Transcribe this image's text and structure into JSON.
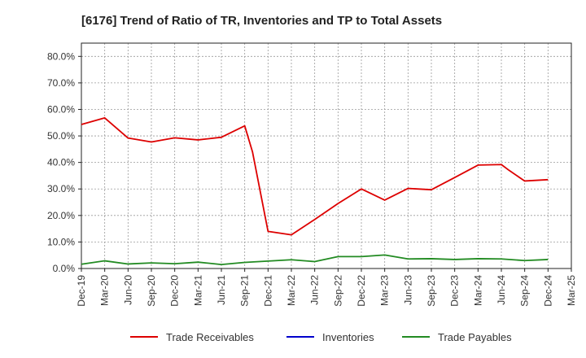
{
  "chart_data": {
    "type": "line",
    "title": "[6176]  Trend of Ratio of TR, Inventories and TP to Total Assets",
    "xlabel": "",
    "ylabel": "",
    "ylim": [
      0,
      85
    ],
    "y_ticks": [
      "0.0%",
      "10.0%",
      "20.0%",
      "30.0%",
      "40.0%",
      "50.0%",
      "60.0%",
      "70.0%",
      "80.0%"
    ],
    "x_ticks": [
      "Dec-19",
      "Mar-20",
      "Jun-20",
      "Sep-20",
      "Dec-20",
      "Mar-21",
      "Jun-21",
      "Sep-21",
      "Dec-21",
      "Mar-22",
      "Jun-22",
      "Sep-22",
      "Dec-22",
      "Mar-23",
      "Jun-23",
      "Sep-23",
      "Dec-23",
      "Mar-24",
      "Jun-24",
      "Sep-24",
      "Dec-24",
      "Mar-25"
    ],
    "grid": true,
    "legend_position": "bottom",
    "colors": {
      "trade_receivables": "#dd0000",
      "inventories": "#0000cc",
      "trade_payables": "#228b22"
    },
    "series": [
      {
        "name": "Trade Receivables",
        "color": "#dd0000",
        "points": [
          [
            "Dec-19",
            54.3
          ],
          [
            "Mar-20",
            56.8
          ],
          [
            "Jun-20",
            49.2
          ],
          [
            "Sep-20",
            47.7
          ],
          [
            "Dec-20",
            49.3
          ],
          [
            "Mar-21",
            48.5
          ],
          [
            "Jun-21",
            49.5
          ],
          [
            "Sep-21",
            53.8
          ],
          [
            "Oct-21",
            44.0
          ],
          [
            "Dec-21",
            14.0
          ],
          [
            "Mar-22",
            12.7
          ],
          [
            "Jun-22",
            18.5
          ],
          [
            "Sep-22",
            24.5
          ],
          [
            "Dec-22",
            30.0
          ],
          [
            "Mar-23",
            25.8
          ],
          [
            "Jun-23",
            30.2
          ],
          [
            "Sep-23",
            29.7
          ],
          [
            "Dec-23",
            34.3
          ],
          [
            "Mar-24",
            39.0
          ],
          [
            "Jun-24",
            39.2
          ],
          [
            "Jul-24",
            37.0
          ],
          [
            "Sep-24",
            33.0
          ],
          [
            "Dec-24",
            33.5
          ]
        ]
      },
      {
        "name": "Inventories",
        "color": "#0000cc",
        "points": []
      },
      {
        "name": "Trade Payables",
        "color": "#228b22",
        "points": [
          [
            "Dec-19",
            1.6
          ],
          [
            "Mar-20",
            2.9
          ],
          [
            "Jun-20",
            1.7
          ],
          [
            "Sep-20",
            2.1
          ],
          [
            "Dec-20",
            1.8
          ],
          [
            "Mar-21",
            2.4
          ],
          [
            "Jun-21",
            1.5
          ],
          [
            "Sep-21",
            2.3
          ],
          [
            "Dec-21",
            2.8
          ],
          [
            "Mar-22",
            3.3
          ],
          [
            "Jun-22",
            2.6
          ],
          [
            "Sep-22",
            4.5
          ],
          [
            "Dec-22",
            4.5
          ],
          [
            "Mar-23",
            5.1
          ],
          [
            "Jun-23",
            3.6
          ],
          [
            "Sep-23",
            3.7
          ],
          [
            "Dec-23",
            3.4
          ],
          [
            "Mar-24",
            3.7
          ],
          [
            "Jun-24",
            3.6
          ],
          [
            "Sep-24",
            3.0
          ],
          [
            "Dec-24",
            3.4
          ]
        ]
      }
    ]
  }
}
